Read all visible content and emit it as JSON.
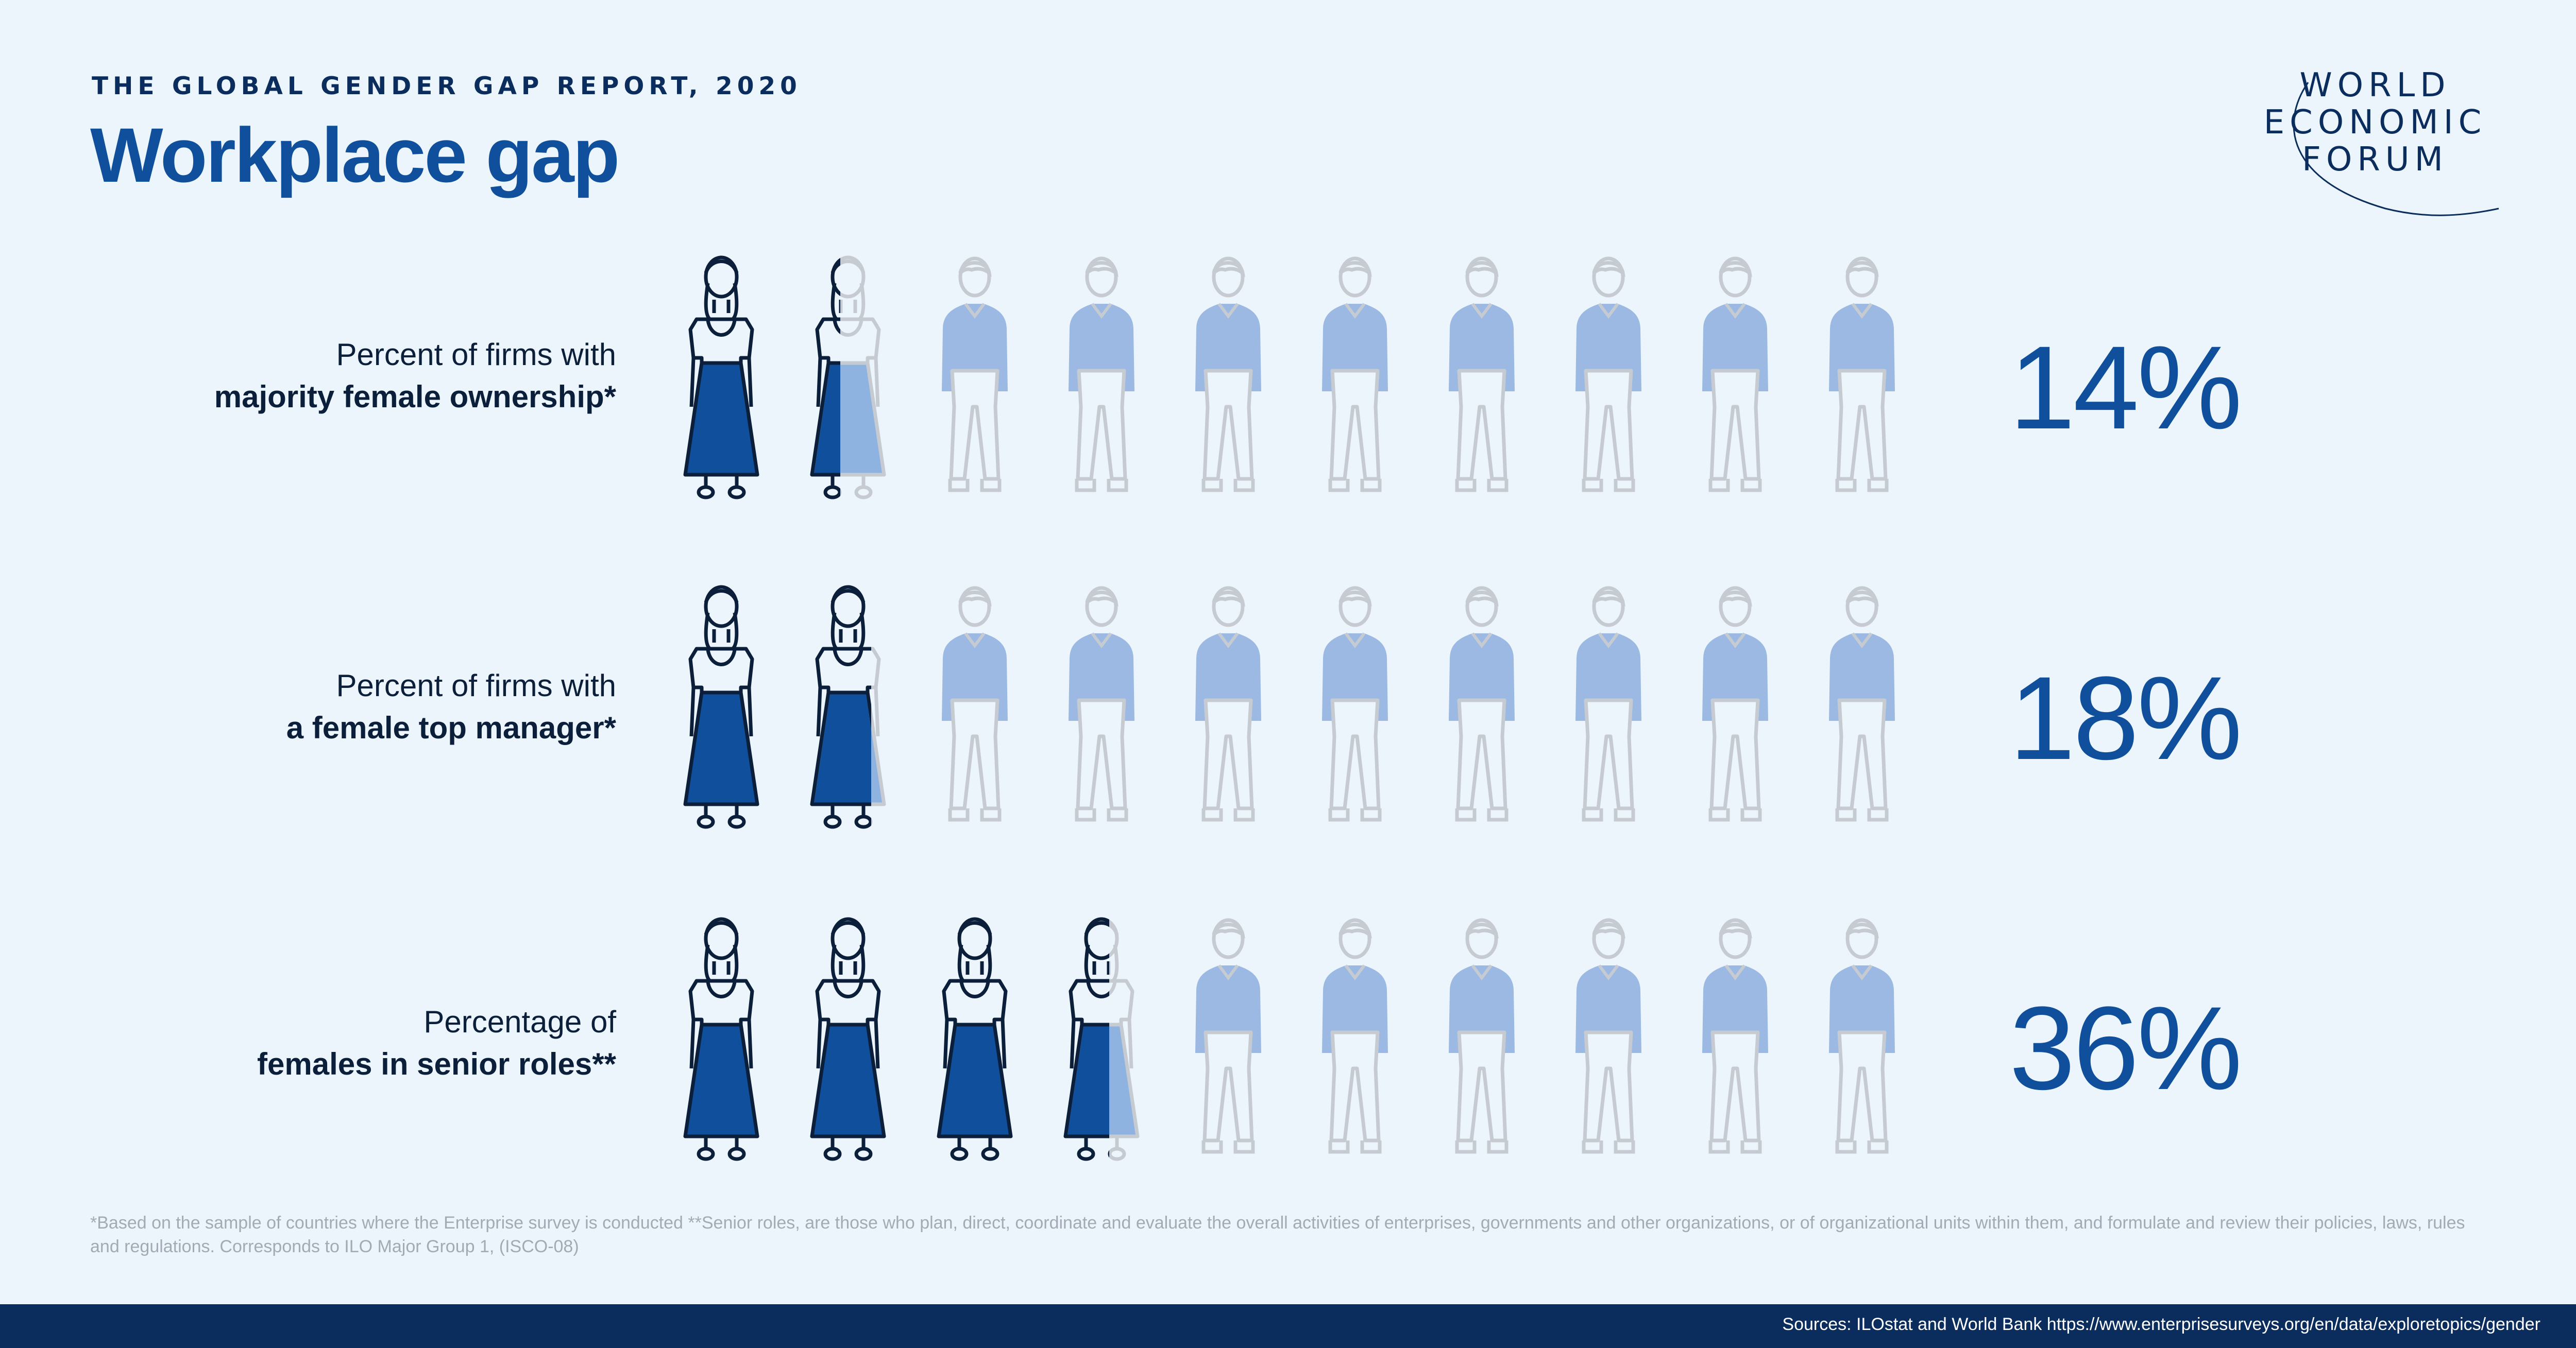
{
  "header": {
    "supertitle": "THE GLOBAL GENDER GAP REPORT, 2020",
    "title": "Workplace gap"
  },
  "logo": {
    "lines": [
      "WORLD",
      "ECONOMIC",
      "FORUM"
    ]
  },
  "colors": {
    "female_fill": "#0f4f9c",
    "female_partial_fill": "#8fb3e0",
    "male_fill": "#9bb9e3",
    "outline_dark": "#0b1f3a",
    "outline_light": "#c6cbd2",
    "accent": "#0f4f9c",
    "footer_bg": "#0b2d5e"
  },
  "chart_data": {
    "type": "pictogram",
    "icons_per_row": 10,
    "rows": [
      {
        "label_line1": "Percent of firms with",
        "label_line2": "majority female ownership*",
        "value_text": "14%",
        "value": 14
      },
      {
        "label_line1": "Percent of firms with",
        "label_line2": "a female top manager*",
        "value_text": "18%",
        "value": 18
      },
      {
        "label_line1": "Percentage of",
        "label_line2": "females in senior roles**",
        "value_text": "36%",
        "value": 36
      }
    ]
  },
  "footnote": "*Based on the sample of countries where the Enterprise survey is conducted  **Senior roles, are those who plan, direct, coordinate and evaluate the overall activities of enterprises, governments and other organizations, or of organizational units within them, and formulate and review their policies, laws, rules and regulations. Corresponds to ILO Major Group 1, (ISCO-08)",
  "sources": "Sources: ILOstat and World Bank https://www.enterprisesurveys.org/en/data/exploretopics/gender"
}
